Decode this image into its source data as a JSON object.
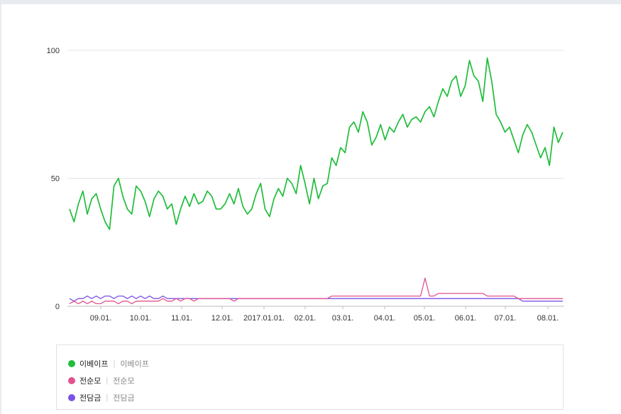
{
  "chart_data": {
    "type": "line",
    "yticks": [
      "100",
      "50",
      "0"
    ],
    "ylim": [
      0,
      100
    ],
    "xtick_labels": [
      "09.01.",
      "10.01.",
      "11.01.",
      "12.01.",
      "2017.01.01.",
      "02.01.",
      "03.01.",
      "04.01.",
      "05.01.",
      "06.01.",
      "07.01.",
      "08.01."
    ],
    "grid": "horizontal",
    "legend_placement": "bottom",
    "series": [
      {
        "name": "이베이프",
        "alt_name": "이베이프",
        "color": "#1fbd3a",
        "values": [
          38,
          33,
          40,
          45,
          36,
          42,
          44,
          38,
          33,
          30,
          47,
          50,
          43,
          38,
          36,
          47,
          45,
          41,
          35,
          42,
          45,
          43,
          38,
          40,
          32,
          38,
          43,
          39,
          44,
          40,
          41,
          45,
          43,
          38,
          38,
          40,
          44,
          40,
          46,
          39,
          36,
          38,
          44,
          48,
          38,
          35,
          42,
          46,
          43,
          50,
          48,
          44,
          55,
          48,
          40,
          50,
          42,
          47,
          48,
          58,
          55,
          62,
          60,
          70,
          72,
          68,
          76,
          72,
          63,
          66,
          71,
          65,
          70,
          68,
          72,
          75,
          70,
          73,
          74,
          72,
          76,
          78,
          74,
          80,
          85,
          82,
          88,
          90,
          82,
          86,
          96,
          90,
          88,
          80,
          97,
          88,
          75,
          72,
          68,
          70,
          65,
          60,
          67,
          71,
          68,
          63,
          58,
          62,
          55,
          70,
          64,
          68
        ]
      },
      {
        "name": "전순모",
        "alt_name": "전순모",
        "color": "#e3528f",
        "values": [
          1,
          2,
          1,
          2,
          1,
          2,
          1,
          1,
          2,
          2,
          2,
          1,
          2,
          2,
          1,
          2,
          2,
          2,
          2,
          2,
          2,
          3,
          2,
          2,
          3,
          2,
          3,
          3,
          2,
          3,
          3,
          3,
          3,
          3,
          3,
          3,
          3,
          2,
          3,
          3,
          3,
          3,
          3,
          3,
          3,
          3,
          3,
          3,
          3,
          3,
          3,
          3,
          3,
          3,
          3,
          3,
          3,
          3,
          3,
          4,
          4,
          4,
          4,
          4,
          4,
          4,
          4,
          4,
          4,
          4,
          4,
          4,
          4,
          4,
          4,
          4,
          4,
          4,
          4,
          4,
          11,
          4,
          4,
          5,
          5,
          5,
          5,
          5,
          5,
          5,
          5,
          5,
          5,
          5,
          4,
          4,
          4,
          4,
          4,
          4,
          4,
          3,
          3,
          3,
          3,
          3,
          3,
          3,
          3,
          3,
          3,
          3
        ]
      },
      {
        "name": "전담금",
        "alt_name": "전담금",
        "color": "#7b52e8",
        "values": [
          3,
          2,
          3,
          3,
          4,
          3,
          4,
          3,
          4,
          4,
          3,
          4,
          4,
          3,
          4,
          3,
          4,
          3,
          4,
          3,
          3,
          4,
          3,
          3,
          3,
          3,
          3,
          3,
          3,
          3,
          3,
          3,
          3,
          3,
          3,
          3,
          3,
          3,
          3,
          3,
          3,
          3,
          3,
          3,
          3,
          3,
          3,
          3,
          3,
          3,
          3,
          3,
          3,
          3,
          3,
          3,
          3,
          3,
          3,
          3,
          3,
          3,
          3,
          3,
          3,
          3,
          3,
          3,
          3,
          3,
          3,
          3,
          3,
          3,
          3,
          3,
          3,
          3,
          3,
          3,
          3,
          3,
          3,
          3,
          3,
          3,
          3,
          3,
          3,
          3,
          3,
          3,
          3,
          3,
          3,
          3,
          3,
          3,
          3,
          3,
          3,
          3,
          2,
          2,
          2,
          2,
          2,
          2,
          2,
          2,
          2,
          2
        ]
      }
    ]
  }
}
